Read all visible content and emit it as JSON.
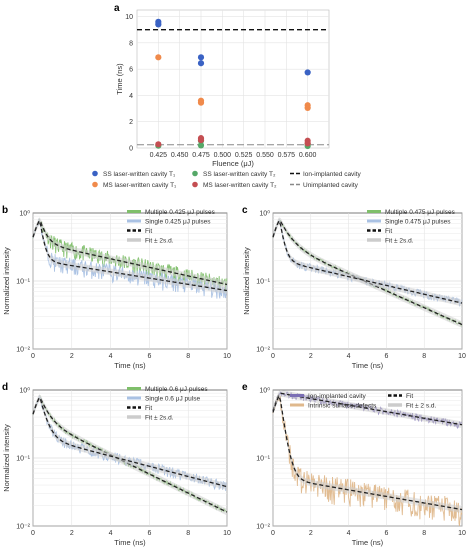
{
  "chart_data": [
    {
      "panel": "a",
      "type": "scatter",
      "xlabel": "Fluence (μJ)",
      "ylabel": "Time (ns)",
      "xlim": [
        0.4,
        0.625
      ],
      "ylim": [
        0,
        10.5
      ],
      "x_ticks": [
        "0.425",
        "0.450",
        "0.475",
        "0.500",
        "0.525",
        "0.550",
        "0.575",
        "0.600"
      ],
      "y_ticks": [
        "0",
        "2",
        "4",
        "6",
        "8",
        "10"
      ],
      "series": [
        {
          "name": "SS laser-written cavity T₁",
          "color": "#3a62c4",
          "points": [
            [
              0.425,
              9.6
            ],
            [
              0.425,
              9.4
            ],
            [
              0.475,
              6.9
            ],
            [
              0.475,
              6.45
            ],
            [
              0.6,
              5.75
            ]
          ]
        },
        {
          "name": "MS laser-written cavity T₁",
          "color": "#f08a4b",
          "points": [
            [
              0.425,
              6.9
            ],
            [
              0.475,
              3.6
            ],
            [
              0.475,
              3.45
            ],
            [
              0.6,
              3.25
            ],
            [
              0.6,
              3.05
            ]
          ]
        },
        {
          "name": "SS laser-written cavity T₂",
          "color": "#55a868",
          "points": [
            [
              0.425,
              0.18
            ],
            [
              0.475,
              0.55
            ],
            [
              0.475,
              0.2
            ],
            [
              0.6,
              0.3
            ],
            [
              0.6,
              0.15
            ]
          ]
        },
        {
          "name": "MS laser-written cavity T₂",
          "color": "#c44e52",
          "points": [
            [
              0.425,
              0.28
            ],
            [
              0.475,
              0.75
            ],
            [
              0.475,
              0.6
            ],
            [
              0.6,
              0.55
            ],
            [
              0.6,
              0.35
            ]
          ]
        }
      ],
      "reference_lines": [
        {
          "name": "Ion-implanted cavity",
          "y": 9.0,
          "style": "dashed"
        },
        {
          "name": "Unimplanted cavity",
          "y": 0.25,
          "style": "dashed-gray"
        }
      ],
      "legend": {
        "items": [
          {
            "label": "SS laser-written cavity T₁",
            "color": "#3a62c4",
            "kind": "dot"
          },
          {
            "label": "SS laser-written cavity T₂",
            "color": "#55a868",
            "kind": "dot"
          },
          {
            "label": "Ion-implanted cavity",
            "color": "#111111",
            "kind": "dash"
          },
          {
            "label": "MS laser-written cavity T₁",
            "color": "#f08a4b",
            "kind": "dot"
          },
          {
            "label": "MS laser-written cavity T₂",
            "color": "#c44e52",
            "kind": "dot"
          },
          {
            "label": "Unimplanted cavity",
            "color": "#888888",
            "kind": "dash"
          }
        ]
      }
    },
    {
      "panel": "b",
      "type": "line",
      "xlabel": "Time (ns)",
      "ylabel": "Normalized intensity",
      "xlim": [
        0,
        10
      ],
      "ylog": true,
      "ylim": [
        0.01,
        1
      ],
      "x_ticks": [
        "0",
        "2",
        "4",
        "6",
        "8",
        "10"
      ],
      "y_ticks": [
        "10⁰",
        "10⁻¹",
        "10⁻²"
      ],
      "series": [
        {
          "name": "Multiple 0.425 μJ pulses",
          "color": "#7fbf6a",
          "peak": 0.8,
          "decay": [
            [
              0.55,
              0.3
            ],
            [
              0.45,
              6.9
            ]
          ],
          "noise": 0.28
        },
        {
          "name": "Single 0.425 μJ pulses",
          "color": "#a9c1e3",
          "peak": 0.8,
          "decay": [
            [
              0.75,
              0.18
            ],
            [
              0.25,
              9.5
            ]
          ],
          "noise": 0.3
        }
      ],
      "legend": {
        "items": [
          {
            "label": "Multiple 0.425 μJ pulses",
            "color": "#7fbf6a",
            "kind": "line"
          },
          {
            "label": "Single 0.425 μJ pulses",
            "color": "#a9c1e3",
            "kind": "line"
          },
          {
            "label": "Fit",
            "color": "#111111",
            "kind": "fit"
          },
          {
            "label": "Fit ± 2s.d.",
            "color": "#cccccc",
            "kind": "band"
          }
        ]
      }
    },
    {
      "panel": "c",
      "type": "line",
      "xlabel": "Time (ns)",
      "ylabel": "Normalized intensity",
      "xlim": [
        0,
        10
      ],
      "ylog": true,
      "ylim": [
        0.01,
        1
      ],
      "x_ticks": [
        "0",
        "2",
        "4",
        "6",
        "8",
        "10"
      ],
      "y_ticks": [
        "10⁰",
        "10⁻¹",
        "10⁻²"
      ],
      "series": [
        {
          "name": "Multiple 0.475 μJ pulses",
          "color": "#7fbf6a",
          "peak": 0.8,
          "decay": [
            [
              0.55,
              0.5
            ],
            [
              0.45,
              3.5
            ]
          ],
          "noise": 0.06
        },
        {
          "name": "Single 0.475 μJ pulses",
          "color": "#a9c1e3",
          "peak": 0.8,
          "decay": [
            [
              0.75,
              0.2
            ],
            [
              0.25,
              6.7
            ]
          ],
          "noise": 0.14
        }
      ],
      "legend": {
        "items": [
          {
            "label": "Multiple 0.475 μJ pulses",
            "color": "#7fbf6a",
            "kind": "line"
          },
          {
            "label": "Single 0.475 μJ pulses",
            "color": "#a9c1e3",
            "kind": "line"
          },
          {
            "label": "Fit",
            "color": "#111111",
            "kind": "fit"
          },
          {
            "label": "Fit ± 2s.d.",
            "color": "#cccccc",
            "kind": "band"
          }
        ]
      }
    },
    {
      "panel": "d",
      "type": "line",
      "xlabel": "Time (ns)",
      "ylabel": "Normalized intensity",
      "xlim": [
        0,
        10
      ],
      "ylog": true,
      "ylim": [
        0.01,
        1
      ],
      "x_ticks": [
        "0",
        "2",
        "4",
        "6",
        "8",
        "10"
      ],
      "y_ticks": [
        "10⁰",
        "10⁻¹",
        "10⁻²"
      ],
      "series": [
        {
          "name": "Multiple 0.6 μJ pulses",
          "color": "#7fbf6a",
          "peak": 0.8,
          "decay": [
            [
              0.55,
              0.4
            ],
            [
              0.45,
              3.1
            ]
          ],
          "noise": 0.08
        },
        {
          "name": "Single 0.6 μJ pulse",
          "color": "#a9c1e3",
          "peak": 0.8,
          "decay": [
            [
              0.75,
              0.3
            ],
            [
              0.25,
              5.8
            ]
          ],
          "noise": 0.18
        }
      ],
      "legend": {
        "items": [
          {
            "label": "Multiple 0.6 μJ pulses",
            "color": "#7fbf6a",
            "kind": "line"
          },
          {
            "label": "Single 0.6 μJ pulse",
            "color": "#a9c1e3",
            "kind": "line"
          },
          {
            "label": "Fit",
            "color": "#111111",
            "kind": "fit"
          },
          {
            "label": "Fit ± 2s.d.",
            "color": "#cccccc",
            "kind": "band"
          }
        ]
      }
    },
    {
      "panel": "e",
      "type": "line",
      "xlabel": "Time (ns)",
      "ylabel": "",
      "xlim": [
        0,
        10
      ],
      "ylog": true,
      "ylim": [
        0.01,
        1
      ],
      "x_ticks": [
        "0",
        "2",
        "4",
        "6",
        "8",
        "10"
      ],
      "y_ticks": [
        "10⁰",
        "10⁻¹",
        "10⁻²"
      ],
      "series": [
        {
          "name": "Ion-implanted cavity",
          "color": "#7b6fb5",
          "peak": 0.9,
          "decay": [
            [
              1.0,
              9.0
            ]
          ],
          "noise": 0.12
        },
        {
          "name": "Intrinsic surface defects",
          "color": "#dfb88c",
          "peak": 0.85,
          "decay": [
            [
              0.94,
              0.22
            ],
            [
              0.06,
              9.0
            ]
          ],
          "noise": 0.45
        }
      ],
      "legend": {
        "items": [
          {
            "label": "Ion-implanted cavity",
            "color": "#7b6fb5",
            "kind": "line"
          },
          {
            "label": "Intrinsic surface defects",
            "color": "#dfb88c",
            "kind": "line"
          },
          {
            "label": "Fit",
            "color": "#111111",
            "kind": "fit"
          },
          {
            "label": "Fit ± 2 s.d.",
            "color": "#cccccc",
            "kind": "band"
          }
        ]
      }
    }
  ]
}
